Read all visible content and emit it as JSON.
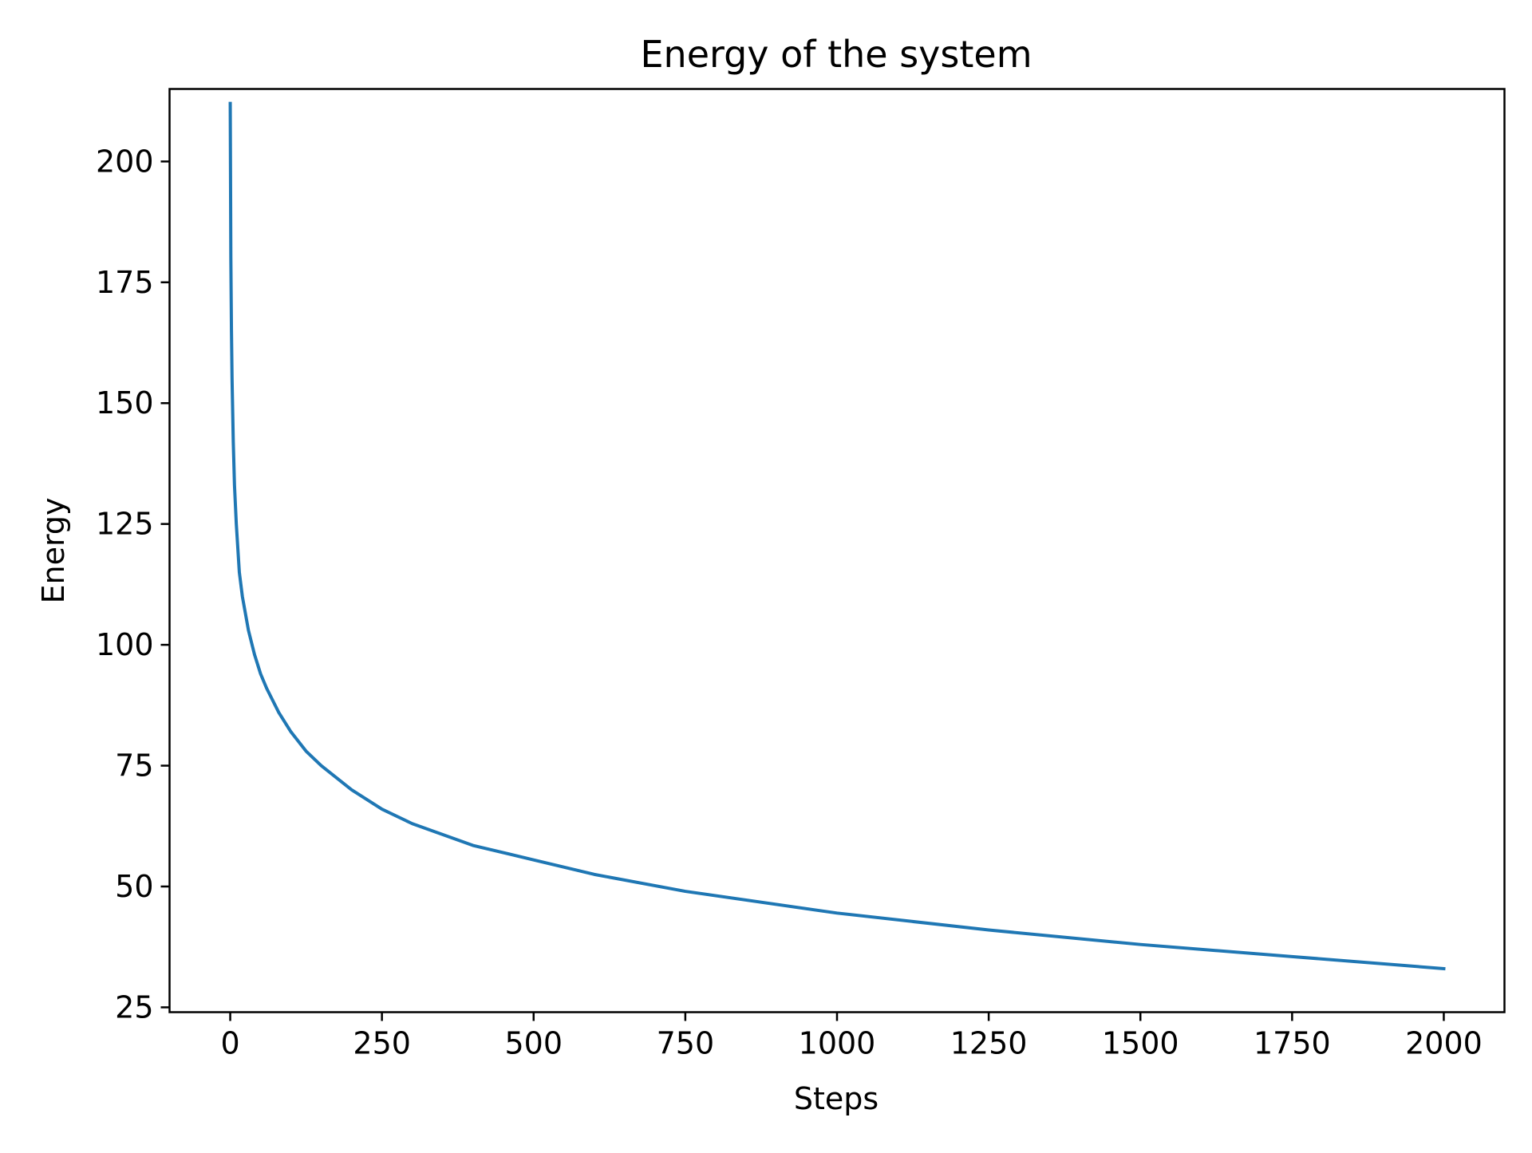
{
  "chart_data": {
    "type": "line",
    "title": "Energy of the system",
    "xlabel": "Steps",
    "ylabel": "Energy",
    "xlim": [
      -100,
      2100
    ],
    "ylim": [
      24,
      215
    ],
    "xticks": [
      0,
      250,
      500,
      750,
      1000,
      1250,
      1500,
      1750,
      2000
    ],
    "yticks": [
      25,
      50,
      75,
      100,
      125,
      150,
      175,
      200
    ],
    "grid": false,
    "legend": "none",
    "series": [
      {
        "color": "#1f77b4",
        "x": [
          0,
          1,
          2,
          3,
          5,
          7,
          10,
          15,
          20,
          30,
          40,
          50,
          60,
          80,
          100,
          125,
          150,
          200,
          250,
          300,
          400,
          500,
          600,
          750,
          1000,
          1250,
          1500,
          1750,
          2000
        ],
        "y": [
          212,
          180,
          165,
          155,
          142,
          133,
          125,
          115,
          110,
          103,
          98,
          94,
          91,
          86,
          82,
          78,
          75,
          70,
          66,
          63,
          58.5,
          55.5,
          52.5,
          49,
          44.5,
          41,
          38,
          35.5,
          33
        ]
      }
    ]
  }
}
